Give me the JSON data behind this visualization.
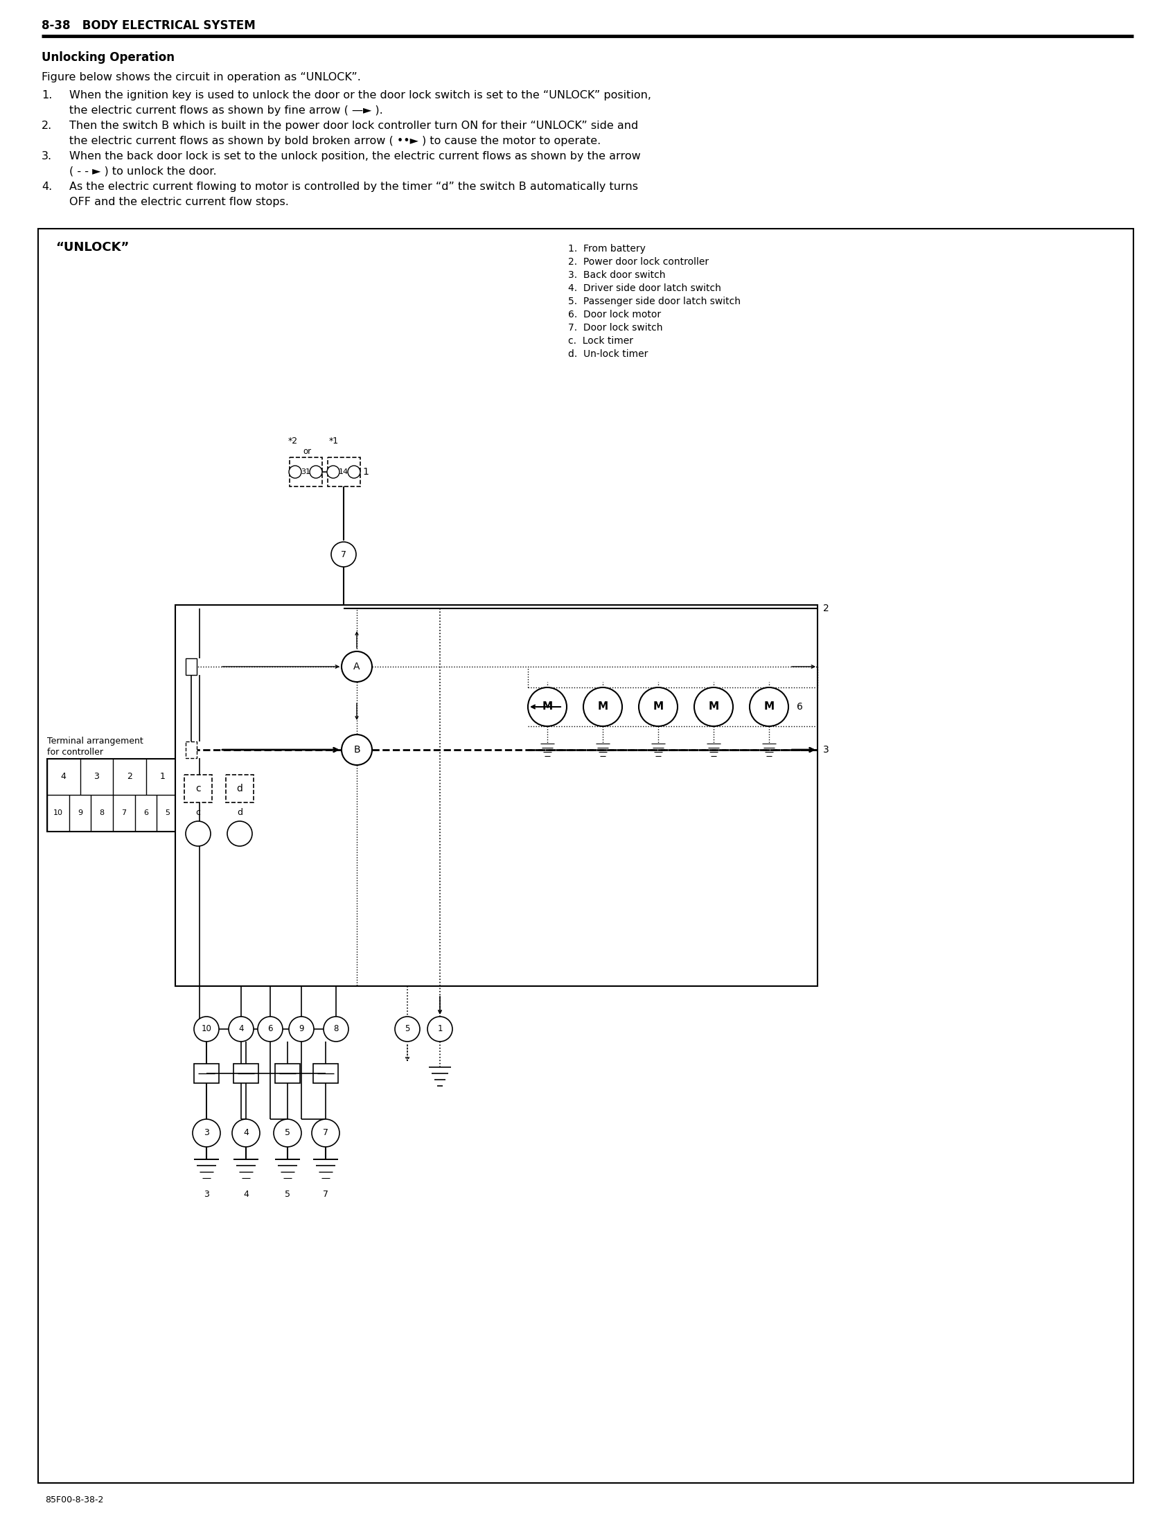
{
  "page_header": "8-38   BODY ELECTRICAL SYSTEM",
  "section_title": "Unlocking Operation",
  "intro_line": "Figure below shows the circuit in operation as “UNLOCK”.",
  "items": [
    [
      "When the ignition key is used to unlock the door or the door lock switch is set to the “UNLOCK” position,",
      "the electric current flows as shown by fine arrow ( —► )."
    ],
    [
      "Then the switch B which is built in the power door lock controller turn ON for their “UNLOCK” side and",
      "the electric current flows as shown by bold broken arrow ( ••► ) to cause the motor to operate."
    ],
    [
      "When the back door lock is set to the unlock position, the electric current flows as shown by the arrow",
      "( - - ► ) to unlock the door."
    ],
    [
      "As the electric current flowing to motor is controlled by the timer “d” the switch B automatically turns",
      "OFF and the electric current flow stops."
    ]
  ],
  "legend_items": [
    "1.  From battery",
    "2.  Power door lock controller",
    "3.  Back door switch",
    "4.  Driver side door latch switch",
    "5.  Passenger side door latch switch",
    "6.  Door lock motor",
    "7.  Door lock switch",
    "c.  Lock timer",
    "d.  Un-lock timer"
  ],
  "diagram_label": "“UNLOCK”",
  "terminal_row1": [
    "4",
    "3",
    "2",
    "1"
  ],
  "terminal_row2": [
    "10",
    "9",
    "8",
    "7",
    "6",
    "5"
  ],
  "footer": "85F00-8-38-2",
  "bg": "#ffffff",
  "black": "#000000"
}
